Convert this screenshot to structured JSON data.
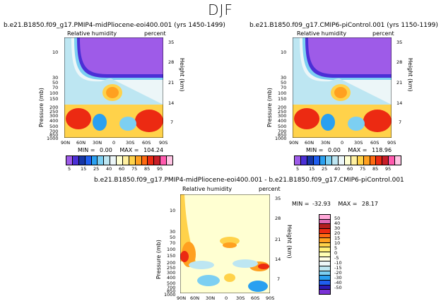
{
  "page": {
    "title": "DJF"
  },
  "colors": {
    "absolute": [
      "#9e5be8",
      "#4b2fd6",
      "#1636a6",
      "#1f5ef0",
      "#2aa0f0",
      "#7ccff2",
      "#bde6f2",
      "#ecf6f8",
      "#ffffd2",
      "#fff0a0",
      "#ffd24a",
      "#ffa020",
      "#ff6a12",
      "#ec2a12",
      "#c81e28",
      "#ff5aae",
      "#ffc4e4"
    ],
    "difference": [
      "#7a32d6",
      "#2a1ab5",
      "#1f5ef0",
      "#2aa0f0",
      "#7ccff2",
      "#bde6f2",
      "#ecf6f8",
      "#ffffe6",
      "#ffffb4",
      "#fff07a",
      "#ffd24a",
      "#ffa020",
      "#ff6a12",
      "#ec2a12",
      "#b41e1e",
      "#e06ab4",
      "#ffa8d8"
    ]
  },
  "chart_data": [
    {
      "id": "panel-pliocene",
      "type": "heatmap",
      "title": "b.e21.B1850.f09_g17.PMIP4-midPliocene-eoi400.001  (yrs 1450-1499)",
      "left_label": "Relative humidity",
      "right_label": "percent",
      "ylabel": "Pressure (mb)",
      "y2label": "Height (km)",
      "xticks": [
        "90N",
        "60N",
        "30N",
        "0",
        "30S",
        "60S",
        "90S"
      ],
      "yticks": [
        "10",
        "30",
        "50",
        "70",
        "100",
        "150",
        "200",
        "250",
        "300",
        "400",
        "500",
        "700",
        "850",
        "1000"
      ],
      "y2ticks": [
        "35",
        "28",
        "21",
        "14",
        "7"
      ],
      "stats": {
        "min_label": "MIN =",
        "min": "0.00",
        "max_label": "MAX =",
        "max": "104.24"
      }
    },
    {
      "id": "panel-picontrol",
      "type": "heatmap",
      "title": "b.e21.B1850.f09_g17.CMIP6-piControl.001  (yrs 1150-1199)",
      "left_label": "Relative humidity",
      "right_label": "percent",
      "ylabel": "Pressure (mb)",
      "y2label": "Height (km)",
      "xticks": [
        "90N",
        "60N",
        "30N",
        "0",
        "30S",
        "60S",
        "90S"
      ],
      "yticks": [
        "10",
        "30",
        "50",
        "70",
        "100",
        "150",
        "200",
        "250",
        "300",
        "400",
        "500",
        "700",
        "850",
        "1000"
      ],
      "y2ticks": [
        "35",
        "28",
        "21",
        "14",
        "7"
      ],
      "stats": {
        "min_label": "MIN =",
        "min": "0.00",
        "max_label": "MAX =",
        "max": "118.96"
      }
    },
    {
      "id": "panel-difference",
      "type": "heatmap",
      "title": "b.e21.B1850.f09_g17.PMIP4-midPliocene-eoi400.001  -  b.e21.B1850.f09_g17.CMIP6-piControl.001",
      "left_label": "Relative humidity",
      "right_label": "percent",
      "ylabel": "Pressure (mb)",
      "y2label": "Height (km)",
      "xticks": [
        "90N",
        "60N",
        "30N",
        "0",
        "30S",
        "60S",
        "90S"
      ],
      "yticks": [
        "10",
        "30",
        "50",
        "70",
        "100",
        "150",
        "200",
        "250",
        "300",
        "400",
        "500",
        "700",
        "850",
        "1000"
      ],
      "y2ticks": [
        "35",
        "28",
        "21",
        "14",
        "7"
      ],
      "stats": {
        "min_label": "MIN =",
        "min": "-32.93",
        "max_label": "MAX =",
        "max": "28.17"
      }
    }
  ],
  "colorbar_absolute": {
    "labels": [
      "5",
      "15",
      "25",
      "40",
      "60",
      "75",
      "85",
      "95"
    ]
  },
  "colorbar_difference": {
    "labels": [
      "50",
      "40",
      "30",
      "20",
      "15",
      "10",
      "5",
      "0",
      "-5",
      "-10",
      "-15",
      "-20",
      "-30",
      "-40",
      "-50"
    ]
  }
}
